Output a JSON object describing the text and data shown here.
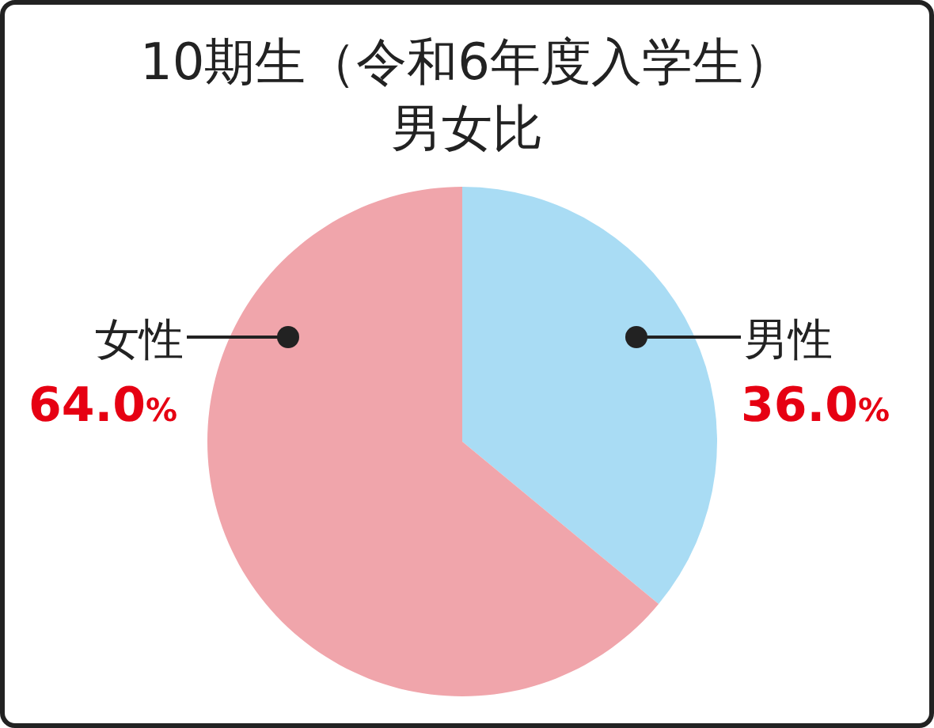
{
  "chart_data": {
    "type": "pie",
    "title": "10期生（令和6年度入学生）",
    "subtitle": "男女比",
    "categories": [
      "男性",
      "女性"
    ],
    "values": [
      36.0,
      64.0
    ],
    "colors": [
      "#a9dcf4",
      "#f0a5ab"
    ],
    "value_labels": [
      "36.0%",
      "64.0%"
    ]
  }
}
